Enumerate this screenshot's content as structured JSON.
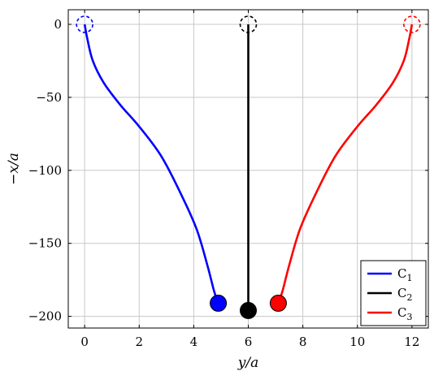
{
  "chart_data": {
    "type": "line",
    "title": "",
    "xlabel": "y/a",
    "ylabel": "−x/a",
    "xlim": [
      -0.6,
      12.6
    ],
    "ylim": [
      -208,
      10
    ],
    "x_ticks": [
      0,
      2,
      4,
      6,
      8,
      10,
      12
    ],
    "y_ticks": [
      0,
      -50,
      -100,
      -150,
      -200
    ],
    "x_tick_labels": [
      "0",
      "2",
      "4",
      "6",
      "8",
      "10",
      "12"
    ],
    "y_tick_labels": [
      "0",
      "−50",
      "−100",
      "−150",
      "−200"
    ],
    "grid": true,
    "legend_position": "bottom-right",
    "series": [
      {
        "name": "C",
        "subscript": "1",
        "color": "#0000ff",
        "x": [
          0,
          0.1,
          0.3,
          0.7,
          1.3,
          2.0,
          2.8,
          3.5,
          4.1,
          4.5,
          4.75,
          4.9
        ],
        "y": [
          0,
          -10,
          -25,
          -40,
          -55,
          -70,
          -90,
          -115,
          -140,
          -165,
          -183,
          -191
        ],
        "start": {
          "x": 0,
          "y": 0
        },
        "end": {
          "x": 4.9,
          "y": -191
        }
      },
      {
        "name": "C",
        "subscript": "2",
        "color": "#000000",
        "x": [
          6,
          6
        ],
        "y": [
          0,
          -196
        ],
        "start": {
          "x": 6,
          "y": 0
        },
        "end": {
          "x": 6,
          "y": -196
        }
      },
      {
        "name": "C",
        "subscript": "3",
        "color": "#ff0000",
        "x": [
          12,
          11.9,
          11.7,
          11.3,
          10.7,
          10.0,
          9.2,
          8.5,
          7.9,
          7.5,
          7.25,
          7.1
        ],
        "y": [
          0,
          -10,
          -25,
          -40,
          -55,
          -70,
          -90,
          -115,
          -140,
          -165,
          -183,
          -191
        ],
        "start": {
          "x": 12,
          "y": 0
        },
        "end": {
          "x": 7.1,
          "y": -191
        }
      }
    ]
  }
}
